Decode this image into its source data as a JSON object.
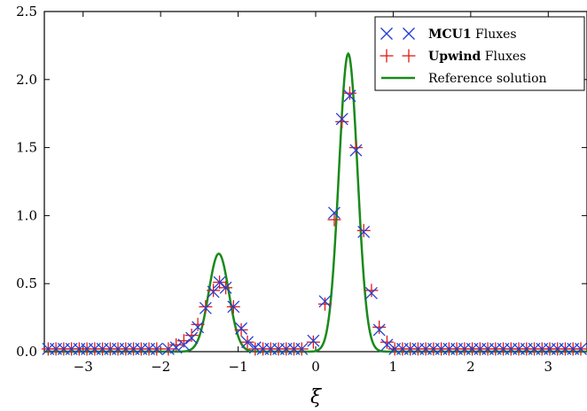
{
  "chart_data": {
    "type": "scatter",
    "title": "",
    "xlabel": "ξ",
    "ylabel": "",
    "xlim": [
      -3.5,
      3.5
    ],
    "ylim": [
      0.0,
      2.5
    ],
    "xticks": [
      -3,
      -2,
      -1,
      0,
      1,
      2,
      3
    ],
    "xtick_labels": [
      "−3",
      "−2",
      "−1",
      "0",
      "1",
      "2",
      "3"
    ],
    "yticks": [
      0.0,
      0.5,
      1.0,
      1.5,
      2.0,
      2.5
    ],
    "ytick_labels": [
      "0.0",
      "0.5",
      "1.0",
      "1.5",
      "2.0",
      "2.5"
    ],
    "grid": false,
    "legend_position": "top-right",
    "legend": [
      {
        "bold": "MCU1",
        "rest": " Fluxes"
      },
      {
        "bold": "Upwind",
        "rest": " Fluxes"
      },
      {
        "bold": "",
        "rest": "Reference solution"
      }
    ],
    "series": [
      {
        "name": "MCU1 Fluxes",
        "marker": "x",
        "color": "#1f3fd6",
        "points": [
          [
            -1.9,
            0.02
          ],
          [
            -1.8,
            0.03
          ],
          [
            -1.7,
            0.05
          ],
          [
            -1.6,
            0.1
          ],
          [
            -1.52,
            0.18
          ],
          [
            -1.42,
            0.32
          ],
          [
            -1.32,
            0.44
          ],
          [
            -1.24,
            0.51
          ],
          [
            -1.16,
            0.47
          ],
          [
            -1.06,
            0.33
          ],
          [
            -0.96,
            0.17
          ],
          [
            -0.88,
            0.07
          ],
          [
            -0.78,
            0.03
          ],
          [
            -0.68,
            0.02
          ],
          [
            -0.03,
            0.08
          ],
          [
            0.12,
            0.37
          ],
          [
            0.24,
            1.02
          ],
          [
            0.34,
            1.71
          ],
          [
            0.44,
            1.88
          ],
          [
            0.52,
            1.48
          ],
          [
            0.62,
            0.88
          ],
          [
            0.72,
            0.43
          ],
          [
            0.82,
            0.16
          ],
          [
            0.92,
            0.05
          ],
          [
            1.02,
            0.02
          ]
        ]
      },
      {
        "name": "Upwind Fluxes",
        "marker": "+",
        "color": "#e01818",
        "points": [
          [
            -1.9,
            0.02
          ],
          [
            -1.8,
            0.05
          ],
          [
            -1.7,
            0.08
          ],
          [
            -1.6,
            0.12
          ],
          [
            -1.52,
            0.2
          ],
          [
            -1.42,
            0.33
          ],
          [
            -1.32,
            0.45
          ],
          [
            -1.24,
            0.51
          ],
          [
            -1.16,
            0.47
          ],
          [
            -1.06,
            0.33
          ],
          [
            -0.96,
            0.16
          ],
          [
            -0.88,
            0.07
          ],
          [
            -0.78,
            0.02
          ],
          [
            -0.68,
            0.02
          ],
          [
            -0.03,
            0.07
          ],
          [
            0.12,
            0.35
          ],
          [
            0.24,
            0.97
          ],
          [
            0.34,
            1.69
          ],
          [
            0.44,
            1.9
          ],
          [
            0.52,
            1.5
          ],
          [
            0.62,
            0.89
          ],
          [
            0.72,
            0.45
          ],
          [
            0.82,
            0.18
          ],
          [
            0.92,
            0.07
          ],
          [
            1.02,
            0.02
          ]
        ]
      },
      {
        "name": "Reference solution",
        "type": "line",
        "color": "#1a8a1a",
        "peaks": [
          {
            "center": -1.25,
            "height": 0.72,
            "sigma": 0.13
          },
          {
            "center": 0.42,
            "height": 2.19,
            "sigma": 0.12
          }
        ]
      }
    ]
  }
}
